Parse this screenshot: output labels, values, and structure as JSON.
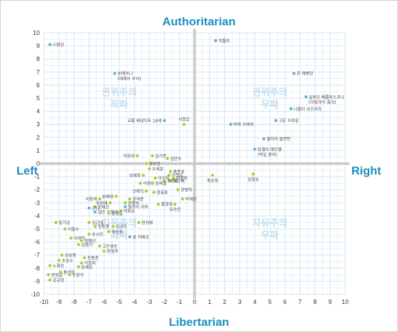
{
  "chart_data": {
    "type": "scatter",
    "title": "",
    "axis_labels": {
      "top": "Authoritarian",
      "bottom": "Libertarian",
      "left": "Left",
      "right": "Right"
    },
    "xlim": [
      -10,
      10
    ],
    "ylim": [
      -10,
      10
    ],
    "ticks": {
      "x": [
        "-10",
        "-9",
        "-8",
        "-7",
        "-6",
        "-5",
        "-4",
        "-3",
        "-2",
        "-1",
        "0",
        "1",
        "2",
        "3",
        "4",
        "5",
        "6",
        "7",
        "8",
        "9",
        "10"
      ],
      "y": [
        "10",
        "9",
        "8",
        "7",
        "6",
        "5",
        "4",
        "3",
        "2",
        "1",
        "0",
        "-1",
        "-2",
        "-3",
        "-4",
        "-5",
        "-6",
        "-7",
        "-8",
        "-9",
        "-10"
      ]
    },
    "grid": true,
    "quadrant_labels": [
      {
        "line1": "권위주의",
        "line2": "좌파",
        "x": -5,
        "y": 5
      },
      {
        "line1": "권위주의",
        "line2": "우파",
        "x": 5,
        "y": 5
      },
      {
        "line1": "자유주의",
        "line2": "좌파",
        "x": -5,
        "y": -5
      },
      {
        "line1": "자유주의",
        "line2": "우파",
        "x": 5,
        "y": -5
      }
    ],
    "colors": {
      "blue": "#5fb3e0",
      "green": "#a9cf3a",
      "grid": "#cfe6f2",
      "axis": "#cccccc",
      "quadrant_text": "#c3ddee",
      "axis_title": "#1a8fbf"
    },
    "points": [
      {
        "label": "스탈린",
        "x": -9.6,
        "y": 9.1,
        "color": "blue",
        "lp": "r"
      },
      {
        "label": "히틀러",
        "x": 1.4,
        "y": 9.4,
        "color": "blue",
        "lp": "r"
      },
      {
        "label": "호메이니",
        "x": -5.3,
        "y": 6.9,
        "color": "blue",
        "lp": "r"
      },
      {
        "label": "(테레사 수녀)",
        "x": -5.3,
        "y": 6.9,
        "color": "none",
        "lp": "r2"
      },
      {
        "label": "존 매케인",
        "x": 6.6,
        "y": 6.9,
        "color": "blue",
        "lp": "r"
      },
      {
        "label": "실비오 베를루스코니",
        "x": 7.4,
        "y": 5.1,
        "color": "blue",
        "lp": "r"
      },
      {
        "label": "(이탈리아 총리)",
        "x": 7.4,
        "y": 5.1,
        "color": "none",
        "lp": "r2"
      },
      {
        "label": "니콜라 사르코지",
        "x": 6.4,
        "y": 4.2,
        "color": "blue",
        "lp": "r"
      },
      {
        "label": "교황 베네딕트 16세",
        "x": -2.0,
        "y": 3.3,
        "color": "blue",
        "lp": "l"
      },
      {
        "label": "서청갑",
        "x": -0.7,
        "y": 3.0,
        "color": "green",
        "lp": "u"
      },
      {
        "label": "버락 오바마",
        "x": 2.4,
        "y": 3.0,
        "color": "blue",
        "lp": "r"
      },
      {
        "label": "고든 브라운",
        "x": 5.4,
        "y": 3.3,
        "color": "blue",
        "lp": "r"
      },
      {
        "label": "힐러리 클린턴",
        "x": 4.6,
        "y": 1.9,
        "color": "blue",
        "lp": "r"
      },
      {
        "label": "앙겔라 메르켈",
        "x": 4.0,
        "y": 1.1,
        "color": "blue",
        "lp": "r"
      },
      {
        "label": "(독일 총리)",
        "x": 4.0,
        "y": 1.1,
        "color": "none",
        "lp": "r2"
      },
      {
        "label": "어윤대",
        "x": -3.8,
        "y": 0.6,
        "color": "green",
        "lp": "l"
      },
      {
        "label": "김기문",
        "x": -2.8,
        "y": 0.6,
        "color": "green",
        "lp": "r"
      },
      {
        "label": "김문수",
        "x": -1.8,
        "y": 0.4,
        "color": "green",
        "lp": "r"
      },
      {
        "label": "정두언",
        "x": -3.2,
        "y": 0.0,
        "color": "green",
        "lp": "r"
      },
      {
        "label": "오세훈",
        "x": -3.0,
        "y": -0.4,
        "color": "green",
        "lp": "r"
      },
      {
        "label": "홍준표",
        "x": -1.6,
        "y": -0.6,
        "color": "green",
        "lp": "r"
      },
      {
        "label": "남재희",
        "x": -3.4,
        "y": -0.9,
        "color": "green",
        "lp": "l"
      },
      {
        "label": "김형오",
        "x": -1.7,
        "y": -0.9,
        "color": "green",
        "lp": "r"
      },
      {
        "label": "이명박",
        "x": -1.4,
        "y": -1.1,
        "color": "green",
        "lp": "r"
      },
      {
        "label": "이상득",
        "x": -2.6,
        "y": -1.1,
        "color": "green",
        "lp": "r"
      },
      {
        "label": "박근혜",
        "x": -1.6,
        "y": -1.3,
        "color": "green",
        "lp": "r"
      },
      {
        "label": "최경환",
        "x": -2.0,
        "y": -1.3,
        "color": "green",
        "lp": "r"
      },
      {
        "label": "이정현",
        "x": -3.6,
        "y": -1.5,
        "color": "green",
        "lp": "r"
      },
      {
        "label": "심재철",
        "x": -2.8,
        "y": -1.5,
        "color": "green",
        "lp": "r"
      },
      {
        "label": "최승희",
        "x": 1.2,
        "y": -0.9,
        "color": "green",
        "lp": "d"
      },
      {
        "label": "임형호",
        "x": 3.9,
        "y": -0.8,
        "color": "green",
        "lp": "d"
      },
      {
        "label": "신해식",
        "x": -3.2,
        "y": -2.1,
        "color": "green",
        "lp": "l"
      },
      {
        "label": "정몽준",
        "x": -2.7,
        "y": -2.2,
        "color": "green",
        "lp": "r"
      },
      {
        "label": "안병직",
        "x": -1.1,
        "y": -2.0,
        "color": "green",
        "lp": "r"
      },
      {
        "label": "원혜영",
        "x": -5.2,
        "y": -2.5,
        "color": "green",
        "lp": "l"
      },
      {
        "label": "이용재",
        "x": -6.3,
        "y": -2.7,
        "color": "green",
        "lp": "l"
      },
      {
        "label": "윤여준",
        "x": -4.3,
        "y": -2.7,
        "color": "green",
        "lp": "r"
      },
      {
        "label": "박재완",
        "x": -0.8,
        "y": -2.7,
        "color": "green",
        "lp": "r"
      },
      {
        "label": "추미애",
        "x": -5.6,
        "y": -3.0,
        "color": "green",
        "lp": "l"
      },
      {
        "label": "한명숙",
        "x": -4.6,
        "y": -3.0,
        "color": "green",
        "lp": "r"
      },
      {
        "label": "홍정욱",
        "x": -2.4,
        "y": -3.1,
        "color": "green",
        "lp": "r"
      },
      {
        "label": "유승민",
        "x": -1.3,
        "y": -3.1,
        "color": "green",
        "lp": "d"
      },
      {
        "label": "정세균",
        "x": -6.6,
        "y": -3.3,
        "color": "green",
        "lp": "r"
      },
      {
        "label": "달라이 라마",
        "x": -4.6,
        "y": -3.3,
        "color": "blue",
        "lp": "r"
      },
      {
        "label": "간디",
        "x": -7.0,
        "y": -3.4,
        "color": "blue",
        "lp": "r"
      },
      {
        "label": "넬슨 만델라",
        "x": -6.6,
        "y": -3.7,
        "color": "blue",
        "lp": "r"
      },
      {
        "label": "박원순",
        "x": -4.9,
        "y": -3.6,
        "color": "green",
        "lp": "r"
      },
      {
        "label": "남경필",
        "x": -5.7,
        "y": -3.8,
        "color": "green",
        "lp": "r"
      },
      {
        "label": "장기갑",
        "x": -9.2,
        "y": -4.5,
        "color": "green",
        "lp": "r"
      },
      {
        "label": "김근태",
        "x": -7.0,
        "y": -4.5,
        "color": "green",
        "lp": "r"
      },
      {
        "label": "천정배",
        "x": -3.7,
        "y": -4.5,
        "color": "green",
        "lp": "r"
      },
      {
        "label": "김상조",
        "x": -5.4,
        "y": -4.8,
        "color": "green",
        "lp": "r"
      },
      {
        "label": "이철우",
        "x": -8.6,
        "y": -5.0,
        "color": "green",
        "lp": "r"
      },
      {
        "label": "정동영",
        "x": -6.6,
        "y": -4.8,
        "color": "green",
        "lp": "r"
      },
      {
        "label": "하승창",
        "x": -5.7,
        "y": -5.2,
        "color": "green",
        "lp": "r"
      },
      {
        "label": "유시민",
        "x": -7.0,
        "y": -5.4,
        "color": "green",
        "lp": "r"
      },
      {
        "label": "알 리베로",
        "x": -4.3,
        "y": -5.6,
        "color": "blue",
        "lp": "r"
      },
      {
        "label": "이해찬",
        "x": -8.2,
        "y": -5.7,
        "color": "green",
        "lp": "r"
      },
      {
        "label": "정혜신",
        "x": -7.5,
        "y": -5.9,
        "color": "green",
        "lp": "r"
      },
      {
        "label": "김종기",
        "x": -7.7,
        "y": -6.2,
        "color": "green",
        "lp": "r"
      },
      {
        "label": "고은광순",
        "x": -6.3,
        "y": -6.3,
        "color": "green",
        "lp": "r"
      },
      {
        "label": "변영주",
        "x": -6.0,
        "y": -6.7,
        "color": "green",
        "lp": "r"
      },
      {
        "label": "심상정",
        "x": -8.8,
        "y": -7.0,
        "color": "green",
        "lp": "r"
      },
      {
        "label": "진중권",
        "x": -7.3,
        "y": -7.2,
        "color": "green",
        "lp": "r"
      },
      {
        "label": "조승수",
        "x": -9.0,
        "y": -7.4,
        "color": "green",
        "lp": "r"
      },
      {
        "label": "이정희",
        "x": -7.5,
        "y": -7.6,
        "color": "green",
        "lp": "r"
      },
      {
        "label": "노회찬",
        "x": -9.6,
        "y": -7.8,
        "color": "green",
        "lp": "r"
      },
      {
        "label": "문재인",
        "x": -7.7,
        "y": -7.9,
        "color": "green",
        "lp": "r"
      },
      {
        "label": "홍세화",
        "x": -8.9,
        "y": -8.3,
        "color": "green",
        "lp": "r"
      },
      {
        "label": "오창익",
        "x": -8.3,
        "y": -8.5,
        "color": "green",
        "lp": "r"
      },
      {
        "label": "권영길",
        "x": -9.7,
        "y": -8.5,
        "color": "green",
        "lp": "r"
      },
      {
        "label": "강규형",
        "x": -9.6,
        "y": -8.9,
        "color": "green",
        "lp": "r"
      }
    ]
  }
}
